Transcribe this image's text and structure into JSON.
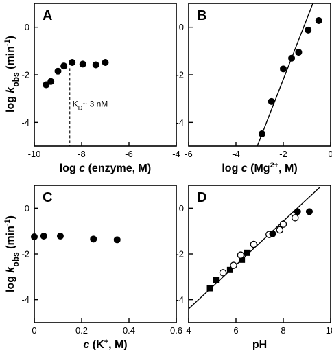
{
  "colors": {
    "axis": "#000000",
    "marker": "#000000",
    "open_fill": "#ffffff"
  },
  "y_axis_label": {
    "prefix": "log ",
    "k": "k",
    "sub": "obs",
    "unit": " (min",
    "sup": "-1",
    "close": ")"
  },
  "chart_data": [
    {
      "panel": "A",
      "type": "scatter",
      "xlabel": {
        "pre": "log ",
        "italic": "c",
        "post": " (enzyme, M)"
      },
      "xlim": [
        -10,
        -4
      ],
      "ylim": [
        -5,
        1
      ],
      "xticks": [
        -10,
        -8,
        -6,
        -4
      ],
      "yticks": [
        -4,
        -2,
        0
      ],
      "x_tick_labels": [
        "-10",
        "-8",
        "-6",
        "-4"
      ],
      "y_tick_labels": [
        "-4",
        "-2",
        "0"
      ],
      "series": [
        {
          "marker": "filled-circle",
          "points": [
            [
              -9.5,
              -2.42
            ],
            [
              -9.3,
              -2.28
            ],
            [
              -9.0,
              -1.85
            ],
            [
              -8.75,
              -1.63
            ],
            [
              -8.4,
              -1.48
            ],
            [
              -7.95,
              -1.55
            ],
            [
              -7.4,
              -1.58
            ],
            [
              -7.0,
              -1.48
            ]
          ]
        }
      ],
      "annotation": {
        "x": -8.5,
        "y": -3.2,
        "text_main": "K",
        "text_sub": "D",
        "text_rest": "~ 3 nM",
        "dashed_line_x": -8.5,
        "dashed_line_y": [
          -1.55,
          -5
        ]
      }
    },
    {
      "panel": "B",
      "type": "scatter",
      "xlabel": {
        "pre": "log ",
        "italic": "c",
        "post": " (Mg",
        "sup": "2+",
        "post2": ", M)"
      },
      "xlim": [
        -6,
        0
      ],
      "ylim": [
        -5,
        1
      ],
      "xticks": [
        -6,
        -4,
        -2,
        0
      ],
      "yticks": [
        -4,
        -2,
        0
      ],
      "x_tick_labels": [
        "-6",
        "-4",
        "-2",
        "0"
      ],
      "y_tick_labels": [
        "-4",
        "-2",
        "0"
      ],
      "series": [
        {
          "marker": "filled-circle",
          "points": [
            [
              -2.9,
              -4.48
            ],
            [
              -2.5,
              -3.12
            ],
            [
              -2.0,
              -1.75
            ],
            [
              -1.65,
              -1.3
            ],
            [
              -1.35,
              -1.05
            ],
            [
              -0.95,
              -0.12
            ],
            [
              -0.5,
              0.28
            ]
          ]
        }
      ],
      "fit_line": [
        [
          -3.1,
          -5.0
        ],
        [
          -0.75,
          1.0
        ]
      ]
    },
    {
      "panel": "C",
      "type": "scatter",
      "xlabel": {
        "italic": "c",
        "post": " (K",
        "sup": "+",
        "post2": ", M)"
      },
      "xlim": [
        0,
        0.6
      ],
      "ylim": [
        -5,
        1
      ],
      "xticks": [
        0,
        0.2,
        0.4,
        0.6
      ],
      "yticks": [
        -4,
        -2,
        0
      ],
      "x_tick_labels": [
        "0",
        "0.2",
        "0.4",
        "0.6"
      ],
      "y_tick_labels": [
        "-4",
        "-2",
        "0"
      ],
      "series": [
        {
          "marker": "filled-circle",
          "points": [
            [
              0.0,
              -1.25
            ],
            [
              0.04,
              -1.22
            ],
            [
              0.11,
              -1.22
            ],
            [
              0.25,
              -1.35
            ],
            [
              0.35,
              -1.38
            ]
          ]
        }
      ]
    },
    {
      "panel": "D",
      "type": "scatter",
      "xlabel": {
        "text": "pH"
      },
      "xlim": [
        4,
        10
      ],
      "ylim": [
        -5,
        1
      ],
      "xticks": [
        4,
        6,
        8,
        10
      ],
      "yticks": [
        -4,
        -2,
        0
      ],
      "x_tick_labels": [
        "4",
        "6",
        "8",
        "10"
      ],
      "y_tick_labels": [
        "-4",
        "-2",
        "0"
      ],
      "series": [
        {
          "marker": "filled-square",
          "points": [
            [
              4.9,
              -3.5
            ],
            [
              5.15,
              -3.15
            ],
            [
              5.75,
              -2.7
            ],
            [
              6.25,
              -2.25
            ],
            [
              6.45,
              -1.95
            ]
          ]
        },
        {
          "marker": "open-circle",
          "points": [
            [
              5.45,
              -2.82
            ],
            [
              5.9,
              -2.5
            ],
            [
              6.2,
              -2.05
            ],
            [
              6.75,
              -1.58
            ],
            [
              7.4,
              -1.15
            ],
            [
              7.85,
              -0.95
            ],
            [
              8.0,
              -0.7
            ],
            [
              8.5,
              -0.42
            ]
          ]
        },
        {
          "marker": "filled-circle",
          "points": [
            [
              7.55,
              -1.12
            ],
            [
              8.6,
              -0.15
            ],
            [
              9.1,
              -0.15
            ]
          ]
        }
      ],
      "fit_line": [
        [
          4.0,
          -4.4
        ],
        [
          9.55,
          0.92
        ]
      ]
    }
  ]
}
